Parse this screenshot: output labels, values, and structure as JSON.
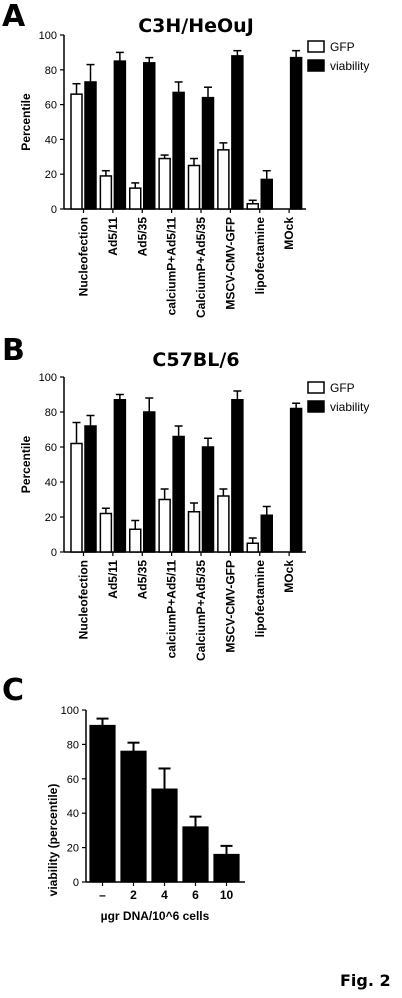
{
  "figure_label": "Fig. 2",
  "chart_data": [
    {
      "type": "bar",
      "panel": "A",
      "title": "C3H/HeOuJ",
      "ylabel": "Percentile",
      "xlabel": "",
      "ylim": [
        0,
        100
      ],
      "yticks": [
        "0",
        "20",
        "40",
        "60",
        "80",
        "100"
      ],
      "categories": [
        "Nucleofection",
        "Ad5/11",
        "Ad5/35",
        "calciumP+Ad5/11",
        "CalciumP+Ad5/35",
        "MSCV-CMV-GFP",
        "lipofectamine",
        "MOck"
      ],
      "series": [
        {
          "name": "GFP",
          "color": "#ffffff",
          "values": [
            66,
            19,
            12,
            29,
            25,
            34,
            3,
            0
          ],
          "errors": [
            6,
            3,
            3,
            2,
            4,
            4,
            2,
            0
          ]
        },
        {
          "name": "viability",
          "color": "#000000",
          "values": [
            73,
            85,
            84,
            67,
            64,
            88,
            17,
            87
          ],
          "errors": [
            10,
            5,
            3,
            6,
            6,
            3,
            5,
            4
          ]
        }
      ],
      "legend": "top-right",
      "grid": false
    },
    {
      "type": "bar",
      "panel": "B",
      "title": "C57BL/6",
      "ylabel": "Percentile",
      "xlabel": "",
      "ylim": [
        0,
        100
      ],
      "yticks": [
        "0",
        "20",
        "40",
        "60",
        "80",
        "100"
      ],
      "categories": [
        "Nucleofection",
        "Ad5/11",
        "Ad5/35",
        "calciumP+Ad5/11",
        "CalciumP+Ad5/35",
        "MSCV-CMV-GFP",
        "lipofectamine",
        "MOck"
      ],
      "series": [
        {
          "name": "GFP",
          "color": "#ffffff",
          "values": [
            62,
            22,
            13,
            30,
            23,
            32,
            5,
            0
          ],
          "errors": [
            12,
            3,
            5,
            6,
            5,
            4,
            3,
            0
          ]
        },
        {
          "name": "viability",
          "color": "#000000",
          "values": [
            72,
            87,
            80,
            66,
            60,
            87,
            21,
            82
          ],
          "errors": [
            6,
            3,
            8,
            6,
            5,
            5,
            5,
            3
          ]
        }
      ],
      "legend": "top-right",
      "grid": false
    },
    {
      "type": "bar",
      "panel": "C",
      "title": "",
      "ylabel": "viability (percentile)",
      "xlabel": "µgr DNA/10^6 cells",
      "ylim": [
        0,
        100
      ],
      "yticks": [
        "0",
        "20",
        "40",
        "60",
        "80",
        "100"
      ],
      "categories": [
        "–",
        "2",
        "4",
        "6",
        "10"
      ],
      "series": [
        {
          "name": "",
          "color": "#000000",
          "values": [
            91,
            76,
            54,
            32,
            16
          ],
          "errors": [
            4,
            5,
            12,
            6,
            5
          ]
        }
      ],
      "legend": "none",
      "grid": false
    }
  ]
}
